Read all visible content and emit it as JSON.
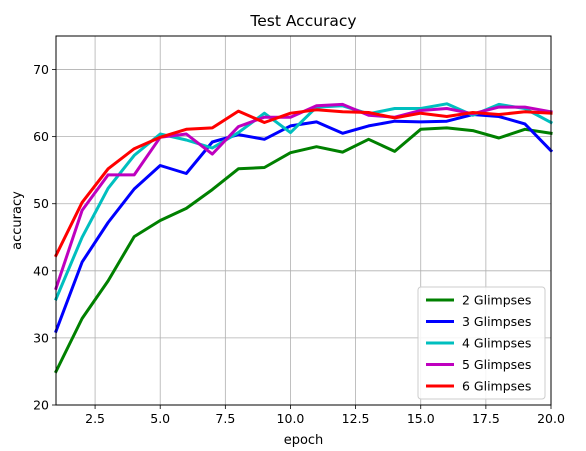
{
  "chart_data": {
    "type": "line",
    "title": "Test Accuracy",
    "xlabel": "epoch",
    "ylabel": "accuracy",
    "xlim": [
      1,
      20
    ],
    "ylim": [
      20,
      75
    ],
    "xticks": [
      2.5,
      5.0,
      7.5,
      10.0,
      12.5,
      15.0,
      17.5,
      20.0
    ],
    "xtick_labels": [
      "2.5",
      "5.0",
      "7.5",
      "10.0",
      "12.5",
      "15.0",
      "17.5",
      "20.0"
    ],
    "yticks": [
      20,
      30,
      40,
      50,
      60,
      70
    ],
    "ytick_labels": [
      "20",
      "30",
      "40",
      "50",
      "60",
      "70"
    ],
    "grid": true,
    "legend_position": "lower-right",
    "x": [
      1,
      2,
      3,
      4,
      5,
      6,
      7,
      8,
      9,
      10,
      11,
      12,
      13,
      14,
      15,
      16,
      17,
      18,
      19,
      20
    ],
    "series": [
      {
        "name": "2 Glimpses",
        "color": "#008000",
        "values": [
          25.0,
          32.9,
          38.5,
          45.1,
          47.5,
          49.3,
          52.1,
          55.2,
          55.4,
          57.6,
          58.5,
          57.7,
          59.6,
          57.8,
          61.1,
          61.3,
          60.9,
          59.8,
          61.1,
          60.5
        ]
      },
      {
        "name": "3 Glimpses",
        "color": "#0000ff",
        "values": [
          31.0,
          41.3,
          47.2,
          52.2,
          55.7,
          54.5,
          59.2,
          60.3,
          59.6,
          61.6,
          62.2,
          60.5,
          61.6,
          62.3,
          62.2,
          62.3,
          63.3,
          63.0,
          61.9,
          57.9
        ]
      },
      {
        "name": "4 Glimpses",
        "color": "#00bfbf",
        "values": [
          35.8,
          45.0,
          52.3,
          57.2,
          60.4,
          59.5,
          58.3,
          60.6,
          63.5,
          60.6,
          64.4,
          64.6,
          63.4,
          64.2,
          64.2,
          64.9,
          63.2,
          64.8,
          64.2,
          62.1
        ]
      },
      {
        "name": "5 Glimpses",
        "color": "#bf00bf",
        "values": [
          37.4,
          49.0,
          54.3,
          54.3,
          59.9,
          60.4,
          57.4,
          61.5,
          62.9,
          62.9,
          64.6,
          64.8,
          63.2,
          62.9,
          63.9,
          64.2,
          63.4,
          64.4,
          64.4,
          63.7
        ]
      },
      {
        "name": "6 Glimpses",
        "color": "#ff0000",
        "values": [
          42.3,
          50.2,
          55.2,
          58.2,
          59.9,
          61.1,
          61.3,
          63.8,
          62.1,
          63.5,
          64.0,
          63.7,
          63.6,
          62.8,
          63.5,
          63.0,
          63.6,
          63.3,
          63.7,
          63.5
        ]
      }
    ]
  }
}
